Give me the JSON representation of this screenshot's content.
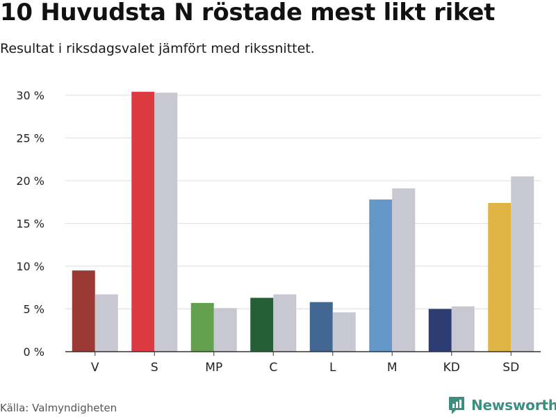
{
  "title": "10 Huvudsta N röstade mest likt riket",
  "subtitle": "Resultat i riksdagsvalet jämfört med rikssnittet.",
  "source": "Källa: Valmyndigheten",
  "brand": {
    "name": "Newsworthy",
    "icon": "newsworthy-logo-icon",
    "color": "#3c8f80"
  },
  "chart_data": {
    "type": "bar",
    "categories": [
      "V",
      "S",
      "MP",
      "C",
      "L",
      "M",
      "KD",
      "SD"
    ],
    "series": [
      {
        "values": [
          9.5,
          30.4,
          5.7,
          6.3,
          5.8,
          17.8,
          5.0,
          17.4
        ],
        "colors": [
          "#9b3a34",
          "#dc3a40",
          "#64a14f",
          "#245f35",
          "#426792",
          "#6397c8",
          "#2d3d74",
          "#e0b444"
        ]
      },
      {
        "values": [
          6.7,
          30.3,
          5.1,
          6.7,
          4.6,
          19.1,
          5.3,
          20.5
        ],
        "color": "#c8c8d2"
      }
    ],
    "y_ticks": [
      "0 %",
      "5 %",
      "10 %",
      "15 %",
      "20 %",
      "25 %",
      "30 %"
    ],
    "ylim": [
      0,
      30
    ],
    "grid": true,
    "legend": "none"
  }
}
